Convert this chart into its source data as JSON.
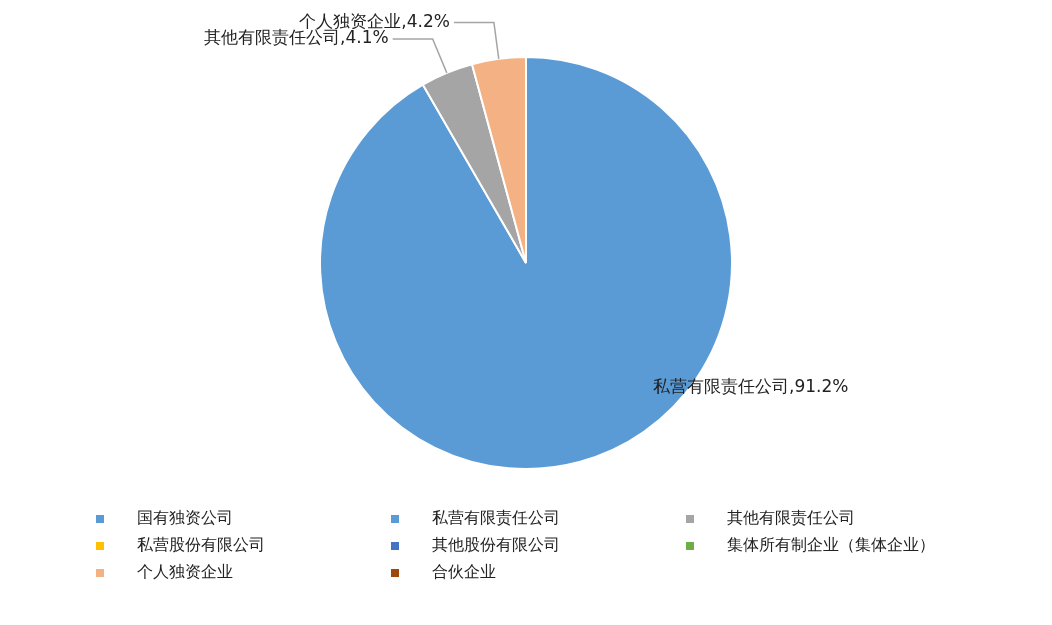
{
  "chart_data": {
    "type": "pie",
    "categories": [
      "国有独资公司",
      "私营有限责任公司",
      "其他有限责任公司",
      "私营股份有限公司",
      "其他股份有限公司",
      "集体所有制企业（集体企业）",
      "个人独资企业",
      "合伙企业"
    ],
    "values": [
      0,
      91.2,
      4.1,
      0,
      0,
      0,
      4.2,
      0
    ],
    "colors": [
      "#5b9bd5",
      "#5b9bd5",
      "#a5a5a5",
      "#ffc000",
      "#4472c4",
      "#70ad47",
      "#f4b183",
      "#9e480e"
    ],
    "value_labels": [
      null,
      "私营有限责任公司,91.2%",
      "其他有限责任公司,4.1%",
      null,
      null,
      null,
      "个人独资企业,4.2%",
      null
    ],
    "legend": "bottom"
  }
}
